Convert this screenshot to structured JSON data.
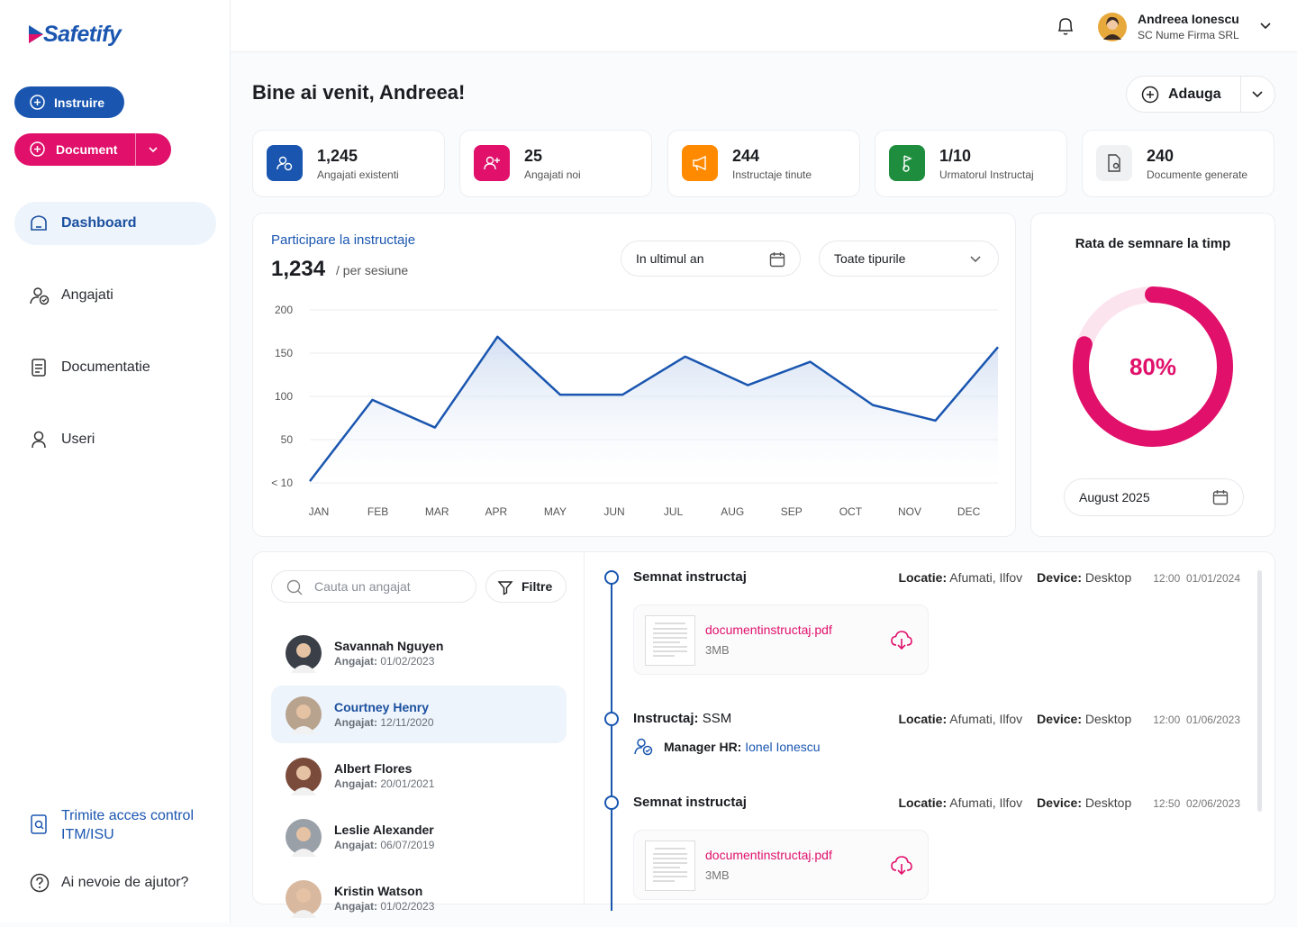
{
  "brand": "Safetify",
  "sidebar": {
    "buttons": [
      "Instruire",
      "Document"
    ],
    "nav": [
      "Dashboard",
      "Angajati",
      "Documentatie",
      "Useri"
    ],
    "footer": [
      "Trimite acces control ITM/ISU",
      "Ai nevoie de ajutor?"
    ]
  },
  "header": {
    "user_name": "Andreea Ionescu",
    "company": "SC Nume Firma SRL"
  },
  "greeting": "Bine ai venit, Andreea!",
  "add_button": "Adauga",
  "stats": [
    {
      "value": "1,245",
      "label": "Angajati existenti"
    },
    {
      "value": "25",
      "label": "Angajati noi"
    },
    {
      "value": "244",
      "label": "Instructaje tinute"
    },
    {
      "value": "1/10",
      "label": "Urmatorul Instructaj"
    },
    {
      "value": "240",
      "label": "Documente generate"
    }
  ],
  "chart_data": [
    {
      "type": "line",
      "title": "Participare la instructaje",
      "total": "1,234",
      "total_unit": "/ per sesiune",
      "filters": [
        "In ultimul an",
        "Toate tipurile"
      ],
      "categories": [
        "JAN",
        "FEB",
        "MAR",
        "APR",
        "MAY",
        "JUN",
        "JUL",
        "AUG",
        "SEP",
        "OCT",
        "NOV",
        "DEC"
      ],
      "values": [
        2,
        96,
        64,
        169,
        102,
        102,
        146,
        113,
        140,
        90,
        72,
        157
      ],
      "color": "#1a56b0",
      "ylim": [
        0,
        200
      ],
      "yticks": [
        {
          "value": 0,
          "label": "< 10"
        },
        50,
        100,
        150,
        200
      ],
      "grid": true
    },
    {
      "type": "donut",
      "title": "Rata de semnare la timp",
      "values": [
        80
      ],
      "value_labels": [
        "80%"
      ],
      "ylim": [
        0,
        100
      ],
      "color": "#e0106b",
      "date_filter": "August 2025"
    }
  ],
  "employees": {
    "search_placeholder": "Cauta un angajat",
    "filter_button": "Filtre",
    "selected": 1,
    "date_label": "Angajat:",
    "list": [
      {
        "name": "Savannah Nguyen",
        "date": "01/02/2023"
      },
      {
        "name": "Courtney Henry",
        "date": "12/11/2020"
      },
      {
        "name": "Albert Flores",
        "date": "20/01/2021"
      },
      {
        "name": "Leslie Alexander",
        "date": "06/07/2019"
      },
      {
        "name": "Kristin Watson",
        "date": "01/02/2023"
      }
    ]
  },
  "timeline": {
    "location_label": "Locatie:",
    "device_label": "Device:",
    "events": [
      {
        "title": "Semnat instructaj",
        "location": "Afumati, Ilfov",
        "device": "Desktop",
        "time": "12:00",
        "date": "01/01/2024",
        "file": {
          "name": "documentinstructaj.pdf",
          "size": "3MB"
        }
      },
      {
        "title_label": "Instructaj:",
        "title": "SSM",
        "location": "Afumati, Ilfov",
        "device": "Desktop",
        "time": "12:00",
        "date": "01/06/2023",
        "manager_label": "Manager HR:",
        "manager": "Ionel Ionescu"
      },
      {
        "title": "Semnat instructaj",
        "location": "Afumati, Ilfov",
        "device": "Desktop",
        "time": "12:50",
        "date": "02/06/2023",
        "file": {
          "name": "documentinstructaj.pdf",
          "size": "3MB"
        }
      }
    ]
  }
}
